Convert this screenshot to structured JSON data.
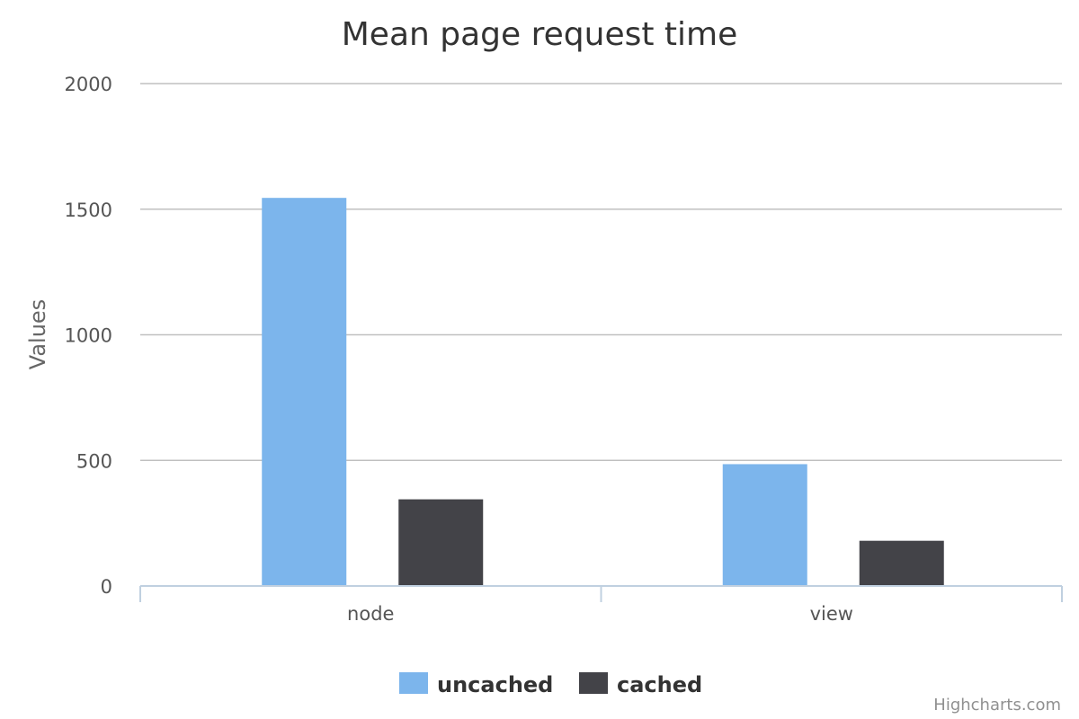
{
  "chart_data": {
    "type": "bar",
    "title": "Mean page request time",
    "subtitle": "",
    "ylabel": "Values",
    "xlabel": "",
    "categories": [
      "node",
      "view"
    ],
    "series": [
      {
        "name": "uncached",
        "color": "#7cb5ec",
        "values": [
          1545,
          485
        ]
      },
      {
        "name": "cached",
        "color": "#434348",
        "values": [
          345,
          180
        ]
      }
    ],
    "ylim": [
      0,
      2000
    ],
    "yticks": [
      0,
      500,
      1000,
      1500,
      2000
    ],
    "grid": true,
    "legend_position": "bottom-center"
  },
  "credits": "Highcharts.com",
  "colors": {
    "grid": "#c0c0c0",
    "axis": "#c0d0e0",
    "title": "#333333"
  }
}
